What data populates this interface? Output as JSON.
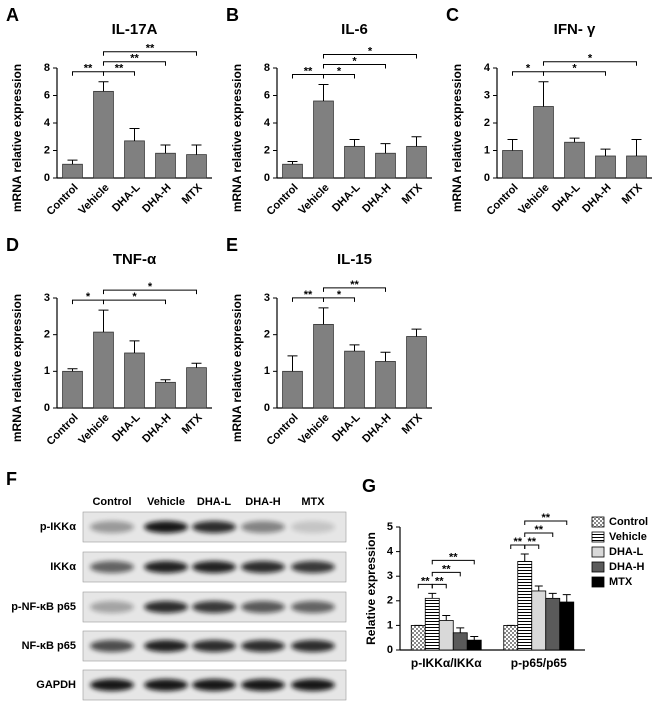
{
  "chart_data": [
    {
      "type": "bar",
      "panel_label": "A",
      "title": "IL-17A",
      "y_label": "mRNA relative expression",
      "categories": [
        "Control",
        "Vehicle",
        "DHA-L",
        "DHA-H",
        "MTX"
      ],
      "values": [
        1.0,
        6.3,
        2.7,
        1.8,
        1.7
      ],
      "errors": [
        0.3,
        0.7,
        0.9,
        0.6,
        0.7
      ],
      "color": "#808080",
      "ylim": [
        0,
        8
      ],
      "yticks": [
        0,
        2,
        4,
        6,
        8
      ],
      "comparisons": [
        {
          "between": [
            "Control",
            "Vehicle"
          ],
          "label": "**"
        },
        {
          "between": [
            "Vehicle",
            "DHA-L"
          ],
          "label": "**"
        },
        {
          "between": [
            "Vehicle",
            "DHA-H"
          ],
          "label": "**"
        },
        {
          "between": [
            "Vehicle",
            "MTX"
          ],
          "label": "**"
        }
      ]
    },
    {
      "type": "bar",
      "panel_label": "B",
      "title": "IL-6",
      "y_label": "mRNA relative expression",
      "categories": [
        "Control",
        "Vehicle",
        "DHA-L",
        "DHA-H",
        "MTX"
      ],
      "values": [
        1.0,
        5.6,
        2.3,
        1.8,
        2.3
      ],
      "errors": [
        0.2,
        1.2,
        0.5,
        0.7,
        0.7
      ],
      "color": "#808080",
      "ylim": [
        0,
        8
      ],
      "yticks": [
        0,
        2,
        4,
        6,
        8
      ],
      "comparisons": [
        {
          "between": [
            "Control",
            "Vehicle"
          ],
          "label": "**"
        },
        {
          "between": [
            "Vehicle",
            "DHA-L"
          ],
          "label": "*"
        },
        {
          "between": [
            "Vehicle",
            "DHA-H"
          ],
          "label": "*"
        },
        {
          "between": [
            "Vehicle",
            "MTX"
          ],
          "label": "*"
        }
      ]
    },
    {
      "type": "bar",
      "panel_label": "C",
      "title": "IFN- γ",
      "y_label": "mRNA relative expression",
      "categories": [
        "Control",
        "Vehicle",
        "DHA-L",
        "DHA-H",
        "MTX"
      ],
      "values": [
        1.0,
        2.6,
        1.3,
        0.8,
        0.8
      ],
      "errors": [
        0.4,
        0.9,
        0.15,
        0.25,
        0.6
      ],
      "color": "#808080",
      "ylim": [
        0,
        4
      ],
      "yticks": [
        0,
        1,
        2,
        3,
        4
      ],
      "comparisons": [
        {
          "between": [
            "Control",
            "Vehicle"
          ],
          "label": "*"
        },
        {
          "between": [
            "Vehicle",
            "DHA-H"
          ],
          "label": "*"
        },
        {
          "between": [
            "Vehicle",
            "MTX"
          ],
          "label": "*"
        }
      ]
    },
    {
      "type": "bar",
      "panel_label": "D",
      "title": "TNF-α",
      "y_label": "mRNA relative expression",
      "categories": [
        "Control",
        "Vehicle",
        "DHA-L",
        "DHA-H",
        "MTX"
      ],
      "values": [
        1.0,
        2.07,
        1.5,
        0.7,
        1.1
      ],
      "errors": [
        0.07,
        0.6,
        0.33,
        0.07,
        0.12
      ],
      "color": "#808080",
      "ylim": [
        0,
        3
      ],
      "yticks": [
        0,
        1,
        2,
        3
      ],
      "comparisons": [
        {
          "between": [
            "Control",
            "Vehicle"
          ],
          "label": "*"
        },
        {
          "between": [
            "Vehicle",
            "DHA-H"
          ],
          "label": "*"
        },
        {
          "between": [
            "Vehicle",
            "MTX"
          ],
          "label": "*"
        }
      ]
    },
    {
      "type": "bar",
      "panel_label": "E",
      "title": "IL-15",
      "y_label": "mRNA relative expression",
      "categories": [
        "Control",
        "Vehicle",
        "DHA-L",
        "DHA-H",
        "MTX"
      ],
      "values": [
        1.0,
        2.28,
        1.55,
        1.27,
        1.95
      ],
      "errors": [
        0.42,
        0.45,
        0.17,
        0.25,
        0.2
      ],
      "color": "#808080",
      "ylim": [
        0,
        3
      ],
      "yticks": [
        0,
        1,
        2,
        3
      ],
      "comparisons": [
        {
          "between": [
            "Control",
            "Vehicle"
          ],
          "label": "**"
        },
        {
          "between": [
            "Vehicle",
            "DHA-L"
          ],
          "label": "*"
        },
        {
          "between": [
            "Vehicle",
            "DHA-H"
          ],
          "label": "**"
        }
      ]
    },
    {
      "type": "grouped_bar",
      "panel_label": "G",
      "y_label": "Relative expression",
      "categories": [
        "p-IKKα/IKKα",
        "p-p65/p65"
      ],
      "series": [
        {
          "name": "Control",
          "color": "#c8c8c8",
          "pattern": "checker",
          "values": [
            1.0,
            1.0
          ],
          "errors": [
            0,
            0
          ]
        },
        {
          "name": "Vehicle",
          "color": "#ffffff",
          "pattern": "hstripe",
          "values": [
            2.1,
            3.6
          ],
          "errors": [
            0.2,
            0.3
          ]
        },
        {
          "name": "DHA-L",
          "color": "#d9d9d9",
          "values": [
            1.2,
            2.4
          ],
          "errors": [
            0.2,
            0.2
          ]
        },
        {
          "name": "DHA-H",
          "color": "#5a5a5a",
          "values": [
            0.7,
            2.1
          ],
          "errors": [
            0.2,
            0.2
          ]
        },
        {
          "name": "MTX",
          "color": "#000000",
          "values": [
            0.4,
            1.95
          ],
          "errors": [
            0.15,
            0.3
          ]
        }
      ],
      "ylim": [
        0,
        5
      ],
      "yticks": [
        0,
        1,
        2,
        3,
        4,
        5
      ],
      "comparisons": [
        [
          {
            "between": [
              "Control",
              "Vehicle"
            ],
            "label": "**"
          },
          {
            "between": [
              "Vehicle",
              "DHA-L"
            ],
            "label": "**"
          },
          {
            "between": [
              "Vehicle",
              "DHA-H"
            ],
            "label": "**"
          },
          {
            "between": [
              "Vehicle",
              "MTX"
            ],
            "label": "**"
          }
        ],
        [
          {
            "between": [
              "Control",
              "Vehicle"
            ],
            "label": "**"
          },
          {
            "between": [
              "Vehicle",
              "DHA-L"
            ],
            "label": "**"
          },
          {
            "between": [
              "Vehicle",
              "DHA-H"
            ],
            "label": "**"
          },
          {
            "between": [
              "Vehicle",
              "MTX"
            ],
            "label": "**"
          }
        ]
      ]
    }
  ],
  "blot": {
    "panel_label": "F",
    "columns": [
      "Control",
      "Vehicle",
      "DHA-L",
      "DHA-H",
      "MTX"
    ],
    "rows": [
      "p-IKKα",
      "IKKα",
      "p-NF-κB p65",
      "NF-κB p65",
      "GAPDH"
    ]
  }
}
